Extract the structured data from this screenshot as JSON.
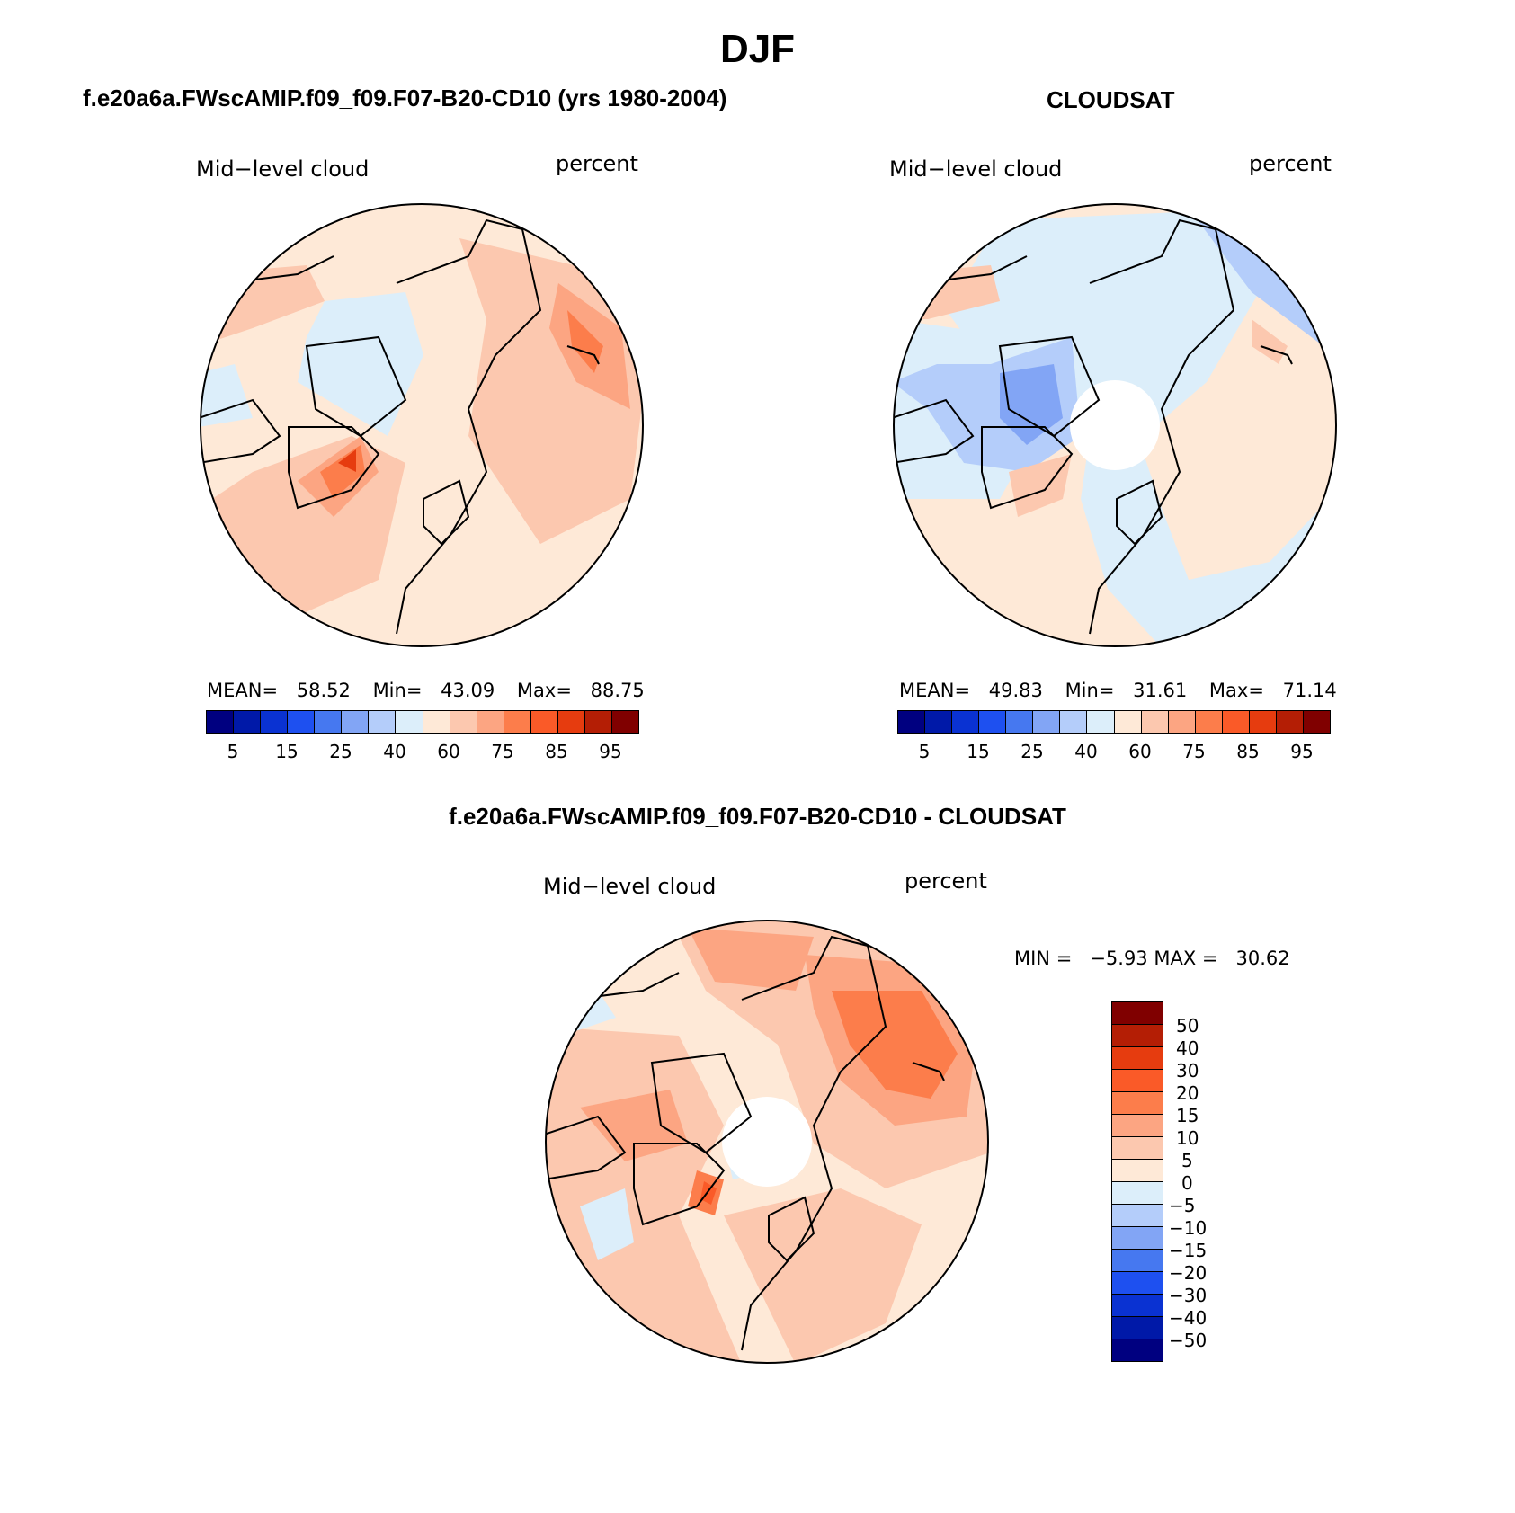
{
  "figure": {
    "title": "DJF",
    "panel_top_left": {
      "title": "f.e20a6a.FWscAMIP.f09_f09.F07-B20-CD10 (yrs 1980-2004)",
      "left_label": "Mid−level cloud",
      "right_label": "percent",
      "stats": {
        "mean_label": "MEAN=",
        "mean": "58.52",
        "min_label": "Min=",
        "min": "43.09",
        "max_label": "Max=",
        "max": "88.75"
      }
    },
    "panel_top_right": {
      "title": "CLOUDSAT",
      "left_label": "Mid−level cloud",
      "right_label": "percent",
      "stats": {
        "mean_label": "MEAN=",
        "mean": "49.83",
        "min_label": "Min=",
        "min": "31.61",
        "max_label": "Max=",
        "max": "71.14"
      }
    },
    "panel_bottom": {
      "title": "f.e20a6a.FWscAMIP.f09_f09.F07-B20-CD10 - CLOUDSAT",
      "left_label": "Mid−level cloud",
      "right_label": "percent",
      "stats_text": "MIN =   −5.93 MAX =   30.62"
    },
    "colorbar_abs": {
      "tick_labels": [
        "5",
        "15",
        "25",
        "40",
        "60",
        "75",
        "85",
        "95"
      ],
      "colors": [
        "#000080",
        "#0019a8",
        "#0a32d2",
        "#1e50f0",
        "#4678f0",
        "#82a5f5",
        "#b4cdfa",
        "#dceefa",
        "#fee9d7",
        "#fcc8af",
        "#fca582",
        "#fc7d4b",
        "#fa5a28",
        "#e63c0f",
        "#b41e05",
        "#800000"
      ]
    },
    "colorbar_diff": {
      "tick_labels": [
        "50",
        "40",
        "30",
        "20",
        "15",
        "10",
        "5",
        "0",
        "−5",
        "−10",
        "−15",
        "−20",
        "−30",
        "−40",
        "−50"
      ],
      "colors": [
        "#800000",
        "#b41e05",
        "#e63c0f",
        "#fa5a28",
        "#fc7d4b",
        "#fca582",
        "#fcc8af",
        "#fee9d7",
        "#dceefa",
        "#b4cdfa",
        "#82a5f5",
        "#4678f0",
        "#1e50f0",
        "#0a32d2",
        "#0019a8",
        "#000080"
      ]
    }
  }
}
